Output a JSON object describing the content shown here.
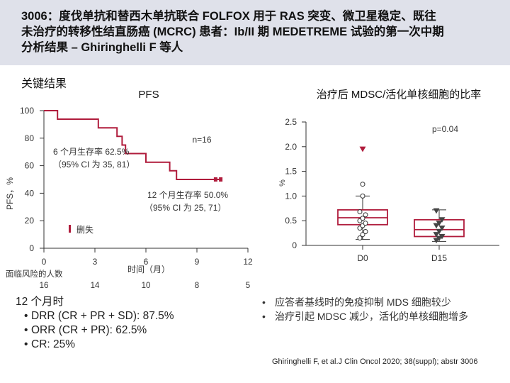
{
  "header": {
    "title_lines": [
      "3006：度伐单抗和替西木单抗联合 FOLFOX 用于 RAS 突变、微卫星稳定、既往",
      "未治疗的转移性结直肠癌 (MCRC) 患者：Ib/II 期 MEDETREME 试验的第一次中期",
      "分析结果 – Ghiringhelli F 等人"
    ]
  },
  "section_label": "关键结果",
  "colors": {
    "accent": "#b01c3c",
    "header_bg": "#dfe1ea",
    "axis": "#333333"
  },
  "chart_data": [
    {
      "type": "line",
      "subtype": "kaplan-meier",
      "title": "PFS",
      "ylabel": "PFS，%",
      "xlabel": "时间（月）",
      "xlim": [
        0,
        12
      ],
      "ylim": [
        0,
        100
      ],
      "xticks": [
        0,
        3,
        6,
        9,
        12
      ],
      "yticks": [
        0,
        20,
        40,
        60,
        80,
        100
      ],
      "series": [
        {
          "name": "",
          "points": [
            [
              0,
              100
            ],
            [
              0.8,
              100
            ],
            [
              0.8,
              93.8
            ],
            [
              3.2,
              93.8
            ],
            [
              3.2,
              87.5
            ],
            [
              4.3,
              87.5
            ],
            [
              4.3,
              81.3
            ],
            [
              4.6,
              81.3
            ],
            [
              4.6,
              75
            ],
            [
              4.8,
              75
            ],
            [
              4.8,
              68.8
            ],
            [
              6,
              68.8
            ],
            [
              6,
              62.5
            ],
            [
              7.4,
              62.5
            ],
            [
              7.4,
              56.3
            ],
            [
              7.8,
              56.3
            ],
            [
              7.8,
              50
            ],
            [
              10.4,
              50
            ]
          ],
          "censor_points": [
            [
              10.1,
              50
            ],
            [
              10.4,
              50
            ]
          ]
        }
      ],
      "n_label": "n=16",
      "annotations": {
        "six_month": [
          "6 个月生存率 62.5%",
          "（95% CI 为 35, 81）"
        ],
        "twelve_month": [
          "12 个月生存率 50.0%",
          "（95% CI 为 25, 71）"
        ],
        "censored_legend": "删失"
      },
      "risk_table": {
        "label": "面临风险的人数",
        "times": [
          0,
          3,
          6,
          9,
          12
        ],
        "values": [
          "16",
          "14",
          "10",
          "8",
          "5"
        ]
      }
    },
    {
      "type": "box",
      "title": "治疗后 MDSC/活化单核细胞的比率",
      "ylabel": "%",
      "ylim": [
        0,
        2.5
      ],
      "yticks": [
        "0",
        "0.5",
        "1.0",
        "1.5",
        "2.0",
        "2.5"
      ],
      "ytick_values": [
        0,
        0.5,
        1.0,
        1.5,
        2.0,
        2.5
      ],
      "categories": [
        "D0",
        "D15"
      ],
      "pvalue": "p=0.04",
      "boxes": [
        {
          "name": "D0",
          "whisker_low": 0.12,
          "q1": 0.42,
          "median": 0.56,
          "q3": 0.72,
          "whisker_high": 1.0,
          "outliers": [
            1.24
          ]
        },
        {
          "name": "D15",
          "whisker_low": 0.08,
          "q1": 0.18,
          "median": 0.32,
          "q3": 0.52,
          "whisker_high": 0.72,
          "outliers": []
        }
      ],
      "points": {
        "D0": [
          0.15,
          0.22,
          0.28,
          0.35,
          0.4,
          0.45,
          0.5,
          0.55,
          0.62,
          0.68,
          1.0
        ],
        "D15": [
          0.1,
          0.14,
          0.18,
          0.22,
          0.28,
          0.35,
          0.4,
          0.45,
          0.52,
          0.7
        ],
        "D0_triangle": 1.95
      }
    }
  ],
  "summary": {
    "heading": "12 个月时",
    "items": [
      "DRR (CR + PR + SD): 87.5%",
      "ORR (CR + PR): 62.5%",
      "CR: 25%"
    ]
  },
  "conclusions": [
    "应答者基线时的免疫抑制 MDS 细胞较少",
    "治疗引起 MDSC 减少，活化的单核细胞增多"
  ],
  "citation": "Ghiringhelli F, et al.J Clin Oncol 2020; 38(suppl); abstr 3006"
}
